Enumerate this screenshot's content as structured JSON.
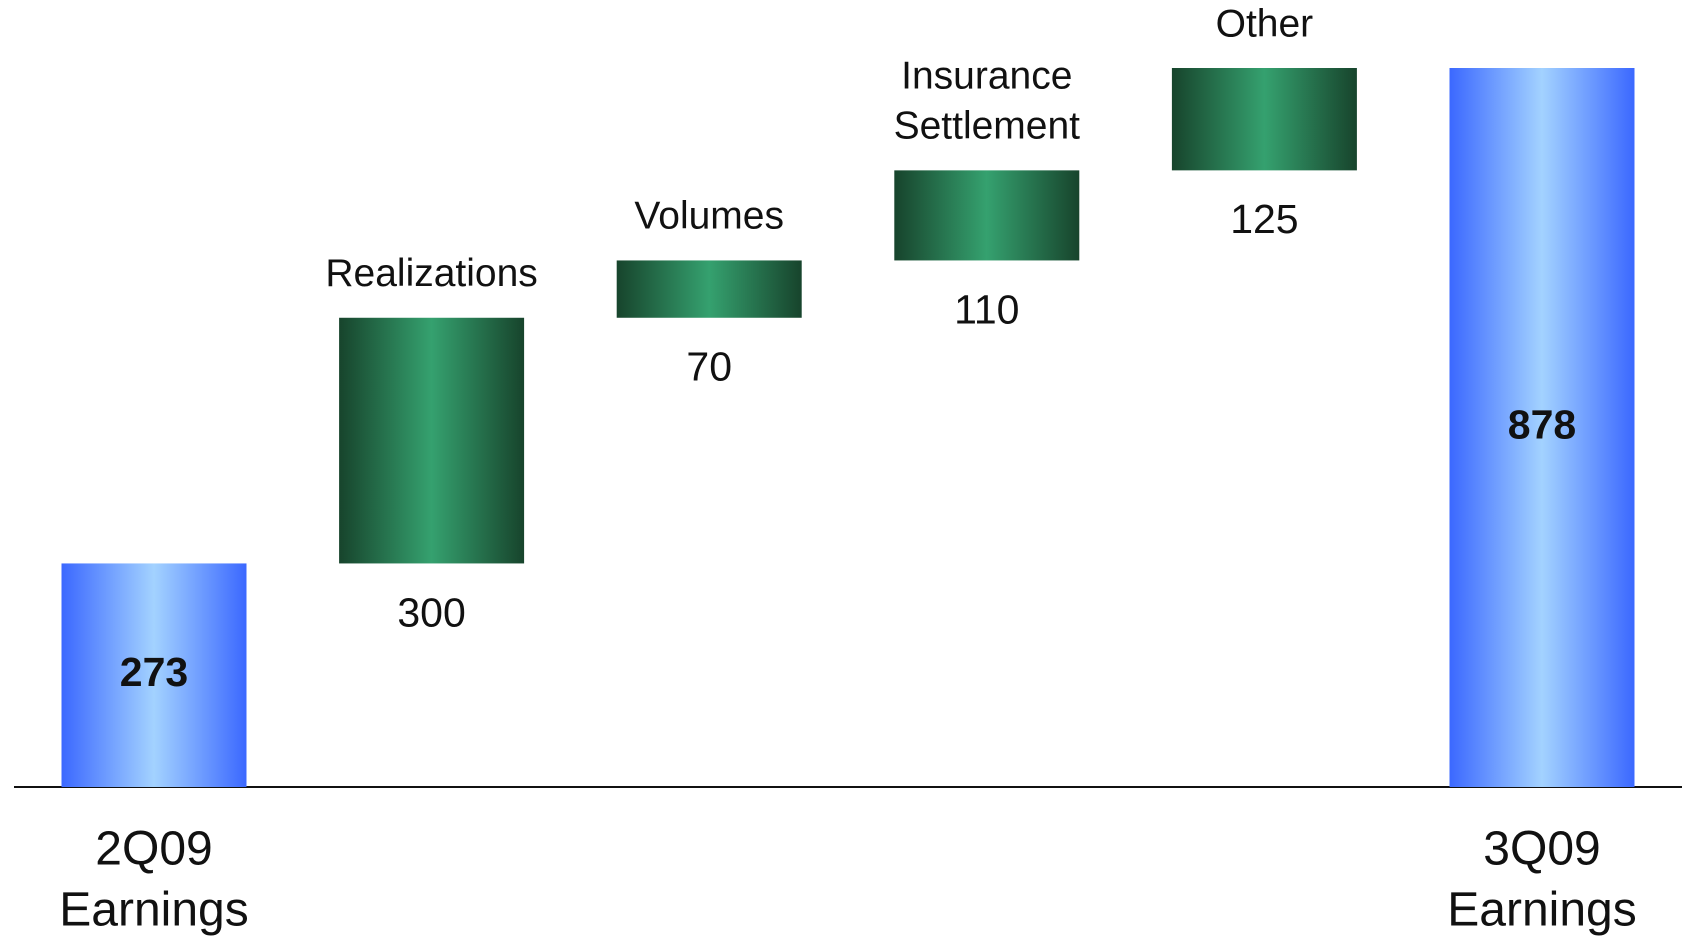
{
  "chart_data": {
    "type": "waterfall",
    "categories": [
      [
        "2Q09",
        "Earnings"
      ],
      [
        "Realizations"
      ],
      [
        "Volumes"
      ],
      [
        "Insurance",
        "Settlement"
      ],
      [
        "Other"
      ],
      [
        "3Q09",
        "Earnings"
      ]
    ],
    "values": [
      273,
      300,
      70,
      110,
      125,
      878
    ],
    "colors": {
      "total": [
        "#3b68ff",
        "#a3d2ff"
      ],
      "change": [
        "#17442c",
        "#35a16f"
      ]
    }
  }
}
